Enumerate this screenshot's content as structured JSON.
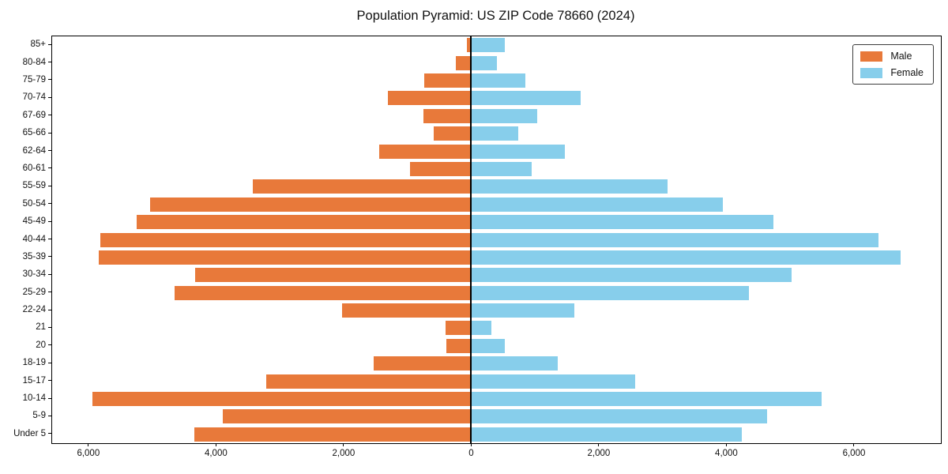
{
  "title": "Population Pyramid: US ZIP Code 78660 (2024)",
  "legend": {
    "male_label": "Male",
    "female_label": "Female"
  },
  "colors": {
    "male": "#e8793a",
    "female": "#87ceeb",
    "axis": "#000000",
    "text": "#111111"
  },
  "chart_data": {
    "type": "bar",
    "subtype": "population-pyramid",
    "orientation": "horizontal",
    "title": "Population Pyramid: US ZIP Code 78660 (2024)",
    "categories": [
      "85+",
      "80-84",
      "75-79",
      "70-74",
      "67-69",
      "65-66",
      "62-64",
      "60-61",
      "55-59",
      "50-54",
      "45-49",
      "40-44",
      "35-39",
      "30-34",
      "25-29",
      "22-24",
      "21",
      "20",
      "18-19",
      "15-17",
      "10-14",
      "5-9",
      "Under 5"
    ],
    "series": [
      {
        "name": "Male",
        "side": "left",
        "values": [
          80,
          250,
          750,
          1320,
          760,
          600,
          1450,
          970,
          3440,
          5050,
          5250,
          5820,
          5850,
          4340,
          4660,
          2040,
          410,
          400,
          1540,
          3230,
          5950,
          3900,
          4350
        ]
      },
      {
        "name": "Female",
        "side": "right",
        "values": [
          510,
          390,
          840,
          1700,
          1020,
          730,
          1450,
          940,
          3060,
          3930,
          4720,
          6370,
          6720,
          5010,
          4340,
          1600,
          310,
          510,
          1340,
          2560,
          5480,
          4630,
          4230
        ]
      }
    ],
    "xlim": [
      -6580,
      7350
    ],
    "x_ticks": [
      {
        "value": -6000,
        "label": "6,000"
      },
      {
        "value": -4000,
        "label": "4,000"
      },
      {
        "value": -2000,
        "label": "2,000"
      },
      {
        "value": 0,
        "label": "0"
      },
      {
        "value": 2000,
        "label": "2,000"
      },
      {
        "value": 4000,
        "label": "4,000"
      },
      {
        "value": 6000,
        "label": "6,000"
      }
    ],
    "grid": false,
    "legend_position": "upper right"
  }
}
